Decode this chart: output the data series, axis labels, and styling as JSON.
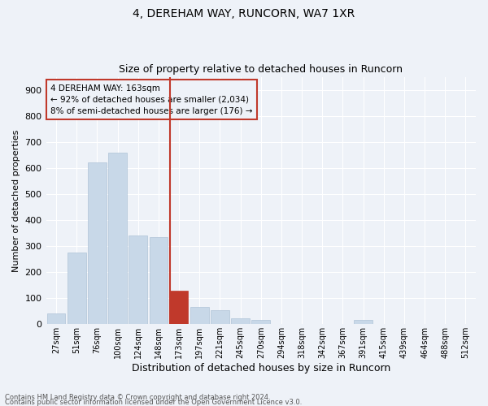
{
  "title1": "4, DEREHAM WAY, RUNCORN, WA7 1XR",
  "title2": "Size of property relative to detached houses in Runcorn",
  "xlabel": "Distribution of detached houses by size in Runcorn",
  "ylabel": "Number of detached properties",
  "bar_color": "#c8d8e8",
  "bar_edge_color": "#b0c4d8",
  "highlight_color": "#c0392b",
  "annotation_text": "4 DEREHAM WAY: 163sqm\n← 92% of detached houses are smaller (2,034)\n8% of semi-detached houses are larger (176) →",
  "footer1": "Contains HM Land Registry data © Crown copyright and database right 2024.",
  "footer2": "Contains public sector information licensed under the Open Government Licence v3.0.",
  "categories": [
    "27sqm",
    "51sqm",
    "76sqm",
    "100sqm",
    "124sqm",
    "148sqm",
    "173sqm",
    "197sqm",
    "221sqm",
    "245sqm",
    "270sqm",
    "294sqm",
    "318sqm",
    "342sqm",
    "367sqm",
    "391sqm",
    "415sqm",
    "439sqm",
    "464sqm",
    "488sqm",
    "512sqm"
  ],
  "values": [
    42,
    275,
    620,
    660,
    340,
    335,
    130,
    65,
    55,
    22,
    18,
    0,
    0,
    0,
    0,
    18,
    0,
    0,
    0,
    0,
    0
  ],
  "highlight_bar_index": 6,
  "ylim": [
    0,
    950
  ],
  "yticks": [
    0,
    100,
    200,
    300,
    400,
    500,
    600,
    700,
    800,
    900
  ],
  "background_color": "#eef2f8",
  "grid_color": "#ffffff"
}
